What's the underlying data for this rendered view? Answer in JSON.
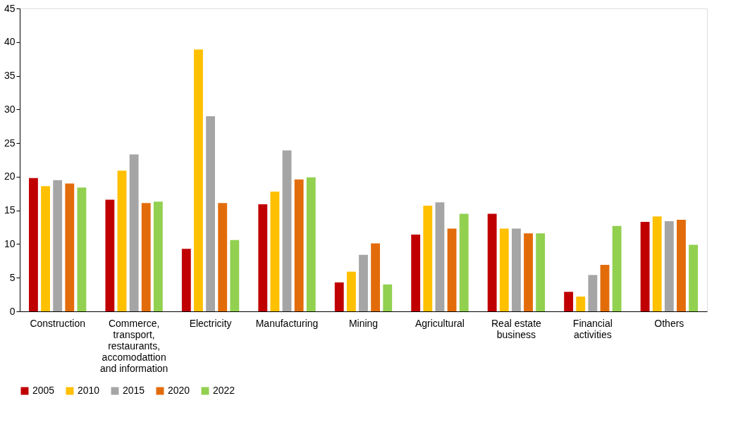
{
  "chart_data": {
    "type": "bar",
    "categories": [
      "Construction",
      "Commerce, transport, restaurants, accomodattion and information",
      "Electricity",
      "Manufacturing",
      "Mining",
      "Agricultural",
      "Real estate business",
      "Financial activities",
      "Others"
    ],
    "series": [
      {
        "name": "2005",
        "color": "#c00000",
        "values": [
          19.8,
          16.6,
          9.3,
          15.9,
          4.3,
          11.4,
          14.5,
          2.9,
          13.3
        ]
      },
      {
        "name": "2010",
        "color": "#ffc000",
        "values": [
          18.6,
          20.9,
          38.9,
          17.8,
          5.9,
          15.7,
          12.3,
          2.2,
          14.1
        ]
      },
      {
        "name": "2015",
        "color": "#a5a5a5",
        "values": [
          19.5,
          23.3,
          29.0,
          23.9,
          8.4,
          16.2,
          12.3,
          5.4,
          13.4
        ]
      },
      {
        "name": "2020",
        "color": "#e36c0a",
        "values": [
          19.0,
          16.1,
          16.1,
          19.6,
          10.1,
          12.3,
          11.6,
          6.9,
          13.6
        ]
      },
      {
        "name": "2022",
        "color": "#92d050",
        "values": [
          18.4,
          16.3,
          10.6,
          19.9,
          4.0,
          14.5,
          11.6,
          12.7,
          9.9
        ]
      }
    ],
    "ylim": [
      0,
      45
    ],
    "yticks": [
      0,
      5,
      10,
      15,
      20,
      25,
      30,
      35,
      40,
      45
    ],
    "grid": false,
    "legend": "bottom"
  }
}
